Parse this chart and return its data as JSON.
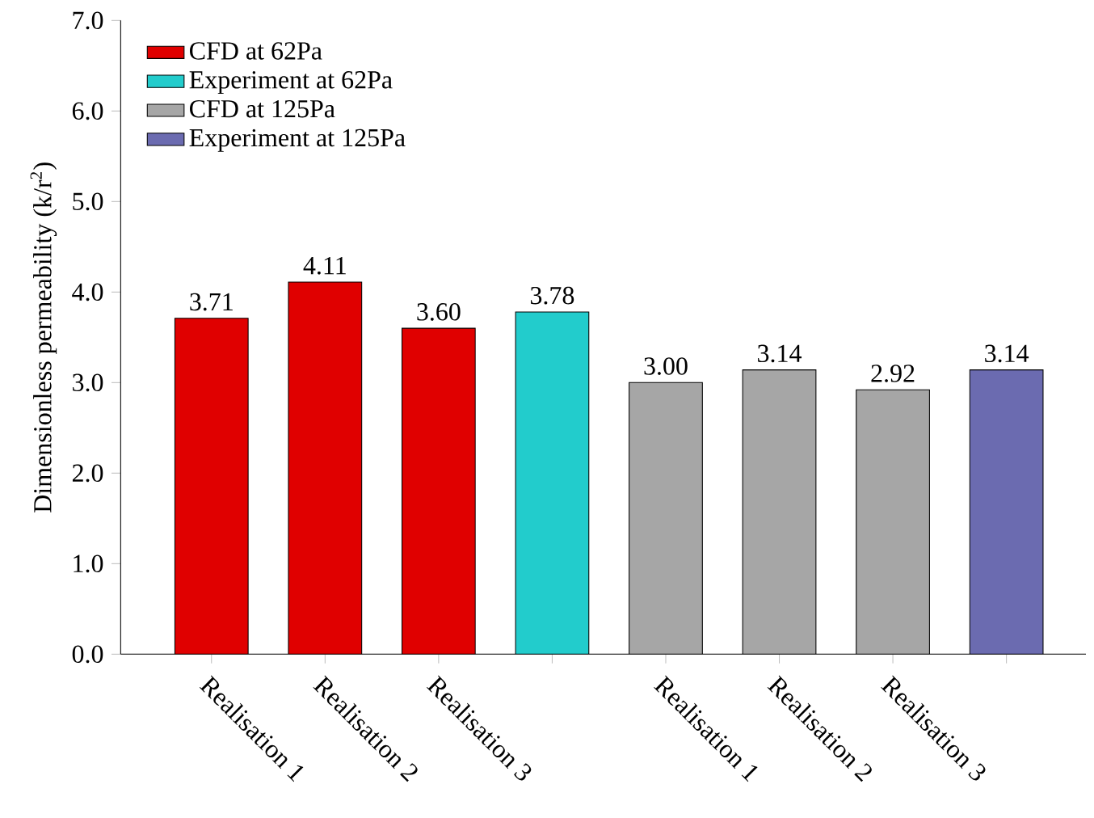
{
  "chart_data": {
    "type": "bar",
    "ylabel": "Dimensionless permeability (k/r$^{2}$)",
    "categories": [
      "Realisation 1",
      "Realisation 2",
      "Realisation 3",
      null,
      "Realisation 1",
      "Realisation 2",
      "Realisation 3",
      null
    ],
    "series": [
      {
        "name": "CFD at 62Pa",
        "color": "#e00000",
        "values": [
          3.71,
          4.11,
          3.6,
          null,
          null,
          null,
          null,
          null
        ],
        "value_labels": [
          "3.71",
          "4.11",
          "3.60",
          null,
          null,
          null,
          null,
          null
        ]
      },
      {
        "name": "Experiment at 62Pa",
        "color": "#22cccc",
        "values": [
          null,
          null,
          null,
          3.78,
          null,
          null,
          null,
          null
        ],
        "value_labels": [
          null,
          null,
          null,
          "3.78",
          null,
          null,
          null,
          null
        ]
      },
      {
        "name": "CFD at 125Pa",
        "color": "#a6a6a6",
        "values": [
          null,
          null,
          null,
          null,
          3.0,
          3.14,
          2.92,
          null
        ],
        "value_labels": [
          null,
          null,
          null,
          null,
          "3.00",
          "3.14",
          "2.92",
          null
        ]
      },
      {
        "name": "Experiment at 125Pa",
        "color": "#6b6bb0",
        "values": [
          null,
          null,
          null,
          null,
          null,
          null,
          null,
          3.14
        ],
        "value_labels": [
          null,
          null,
          null,
          null,
          null,
          null,
          null,
          "3.14"
        ]
      }
    ],
    "ylim": [
      0,
      7
    ],
    "yticks": [
      {
        "value": 0,
        "label": "0.0"
      },
      {
        "value": 1,
        "label": "1.0"
      },
      {
        "value": 2,
        "label": "2.0"
      },
      {
        "value": 3,
        "label": "3.0"
      },
      {
        "value": 4,
        "label": "4.0"
      },
      {
        "value": 5,
        "label": "5.0"
      },
      {
        "value": 6,
        "label": "6.0"
      },
      {
        "value": 7,
        "label": "7.0"
      }
    ],
    "legend": "top left"
  }
}
